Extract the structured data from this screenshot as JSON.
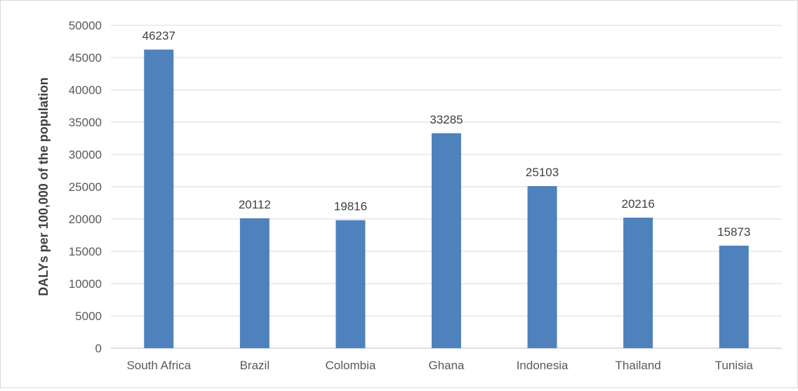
{
  "chart_data": {
    "type": "bar",
    "title": "",
    "xlabel": "",
    "ylabel": "DALYs per 100,000 of the population",
    "categories": [
      "South Africa",
      "Brazil",
      "Colombia",
      "Ghana",
      "Indonesia",
      "Thailand",
      "Tunisia"
    ],
    "values": [
      46237,
      20112,
      19816,
      33285,
      25103,
      20216,
      15873
    ],
    "data_labels": [
      "46237",
      "20112",
      "19816",
      "33285",
      "25103",
      "20216",
      "15873"
    ],
    "ylim": [
      0,
      50000
    ],
    "yticks": [
      0,
      5000,
      10000,
      15000,
      20000,
      25000,
      30000,
      35000,
      40000,
      45000,
      50000
    ],
    "ytick_labels": [
      "0",
      "5000",
      "10000",
      "15000",
      "20000",
      "25000",
      "30000",
      "35000",
      "40000",
      "45000",
      "50000"
    ],
    "grid": true,
    "legend": "none",
    "colors": {
      "bar": "#4F81BD",
      "grid": "#D9D9D9",
      "axis": "#BFBFBF"
    }
  }
}
